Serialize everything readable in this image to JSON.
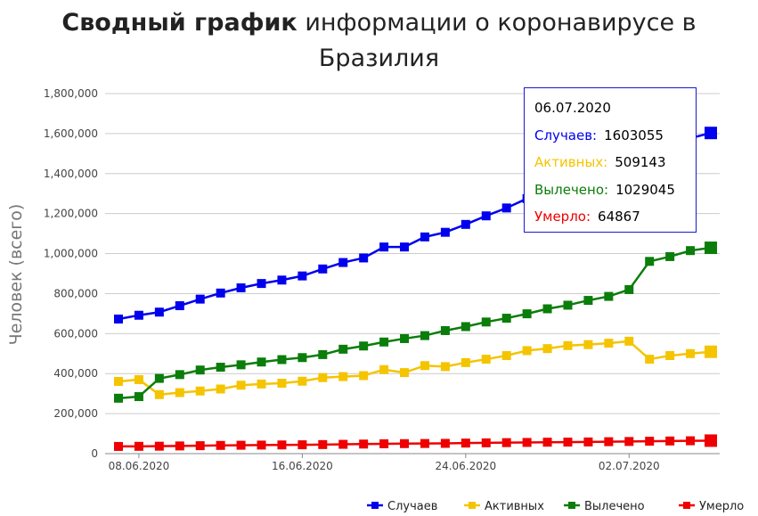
{
  "title": {
    "bold": "Сводный график",
    "rest": "информации о коронавирусе в Бразилия"
  },
  "chart_data": {
    "type": "line",
    "ylabel": "Человек (всего)",
    "ylim": [
      0,
      1800000
    ],
    "yticks": [
      0,
      200000,
      400000,
      600000,
      800000,
      1000000,
      1200000,
      1400000,
      1600000,
      1800000
    ],
    "ytick_labels": [
      "0",
      "200,000",
      "400,000",
      "600,000",
      "800,000",
      "1,000,000",
      "1,200,000",
      "1,400,000",
      "1,600,000",
      "1,800,000"
    ],
    "x": [
      "07.06.2020",
      "08.06.2020",
      "09.06.2020",
      "10.06.2020",
      "11.06.2020",
      "12.06.2020",
      "13.06.2020",
      "14.06.2020",
      "15.06.2020",
      "16.06.2020",
      "17.06.2020",
      "18.06.2020",
      "19.06.2020",
      "20.06.2020",
      "21.06.2020",
      "22.06.2020",
      "23.06.2020",
      "24.06.2020",
      "25.06.2020",
      "26.06.2020",
      "27.06.2020",
      "28.06.2020",
      "29.06.2020",
      "30.06.2020",
      "01.07.2020",
      "02.07.2020",
      "03.07.2020",
      "04.07.2020",
      "05.07.2020",
      "06.07.2020"
    ],
    "xtick_labels": [
      "08.06.2020",
      "16.06.2020",
      "24.06.2020",
      "02.07.2020"
    ],
    "xtick_index": [
      1,
      9,
      17,
      25
    ],
    "grid": "horizontal",
    "legend": "bottom-right",
    "series": [
      {
        "name": "Случаев",
        "color": "#0000ee",
        "values": [
          672846,
          691758,
          707412,
          739503,
          772416,
          802828,
          828810,
          850514,
          867624,
          888271,
          923189,
          955377,
          978142,
          1032913,
          1032913,
          1083341,
          1106470,
          1145906,
          1188631,
          1228114,
          1274974,
          1313667,
          1344143,
          1368195,
          1402041,
          1448753,
          1496858,
          1543341,
          1577004,
          1603055
        ]
      },
      {
        "name": "Активных",
        "color": "#f5c400",
        "values": [
          361000,
          370000,
          295000,
          305000,
          313000,
          323000,
          342000,
          348000,
          352000,
          362000,
          380000,
          385000,
          390000,
          420000,
          405000,
          440000,
          435000,
          455000,
          472000,
          490000,
          515000,
          525000,
          540000,
          545000,
          552000,
          562000,
          472000,
          490000,
          500000,
          509143
        ]
      },
      {
        "name": "Вылечено",
        "color": "#0a7d0a",
        "values": [
          277000,
          285000,
          376000,
          395000,
          418000,
          432000,
          444000,
          458000,
          470000,
          480000,
          495000,
          522000,
          538000,
          558000,
          575000,
          590000,
          615000,
          635000,
          658000,
          677000,
          699000,
          724000,
          742000,
          766000,
          786000,
          820000,
          961000,
          985000,
          1015000,
          1029045
        ]
      },
      {
        "name": "Умерло",
        "color": "#ee0000",
        "values": [
          35930,
          36455,
          37134,
          38406,
          39680,
          41058,
          41901,
          42720,
          43389,
          44118,
          45241,
          46510,
          47748,
          49090,
          49976,
          50617,
          51271,
          52645,
          53830,
          54971,
          55961,
          57070,
          57622,
          58314,
          59594,
          60632,
          61884,
          63174,
          64265,
          64867
        ]
      }
    ]
  },
  "tooltip": {
    "date": "06.07.2020",
    "rows": [
      {
        "label": "Случаев:",
        "value": "1603055",
        "color": "#0000ee"
      },
      {
        "label": "Активных:",
        "value": "509143",
        "color": "#f5c400"
      },
      {
        "label": "Вылечено:",
        "value": "1029045",
        "color": "#0a7d0a"
      },
      {
        "label": "Умерло:",
        "value": "64867",
        "color": "#ee0000"
      }
    ]
  }
}
